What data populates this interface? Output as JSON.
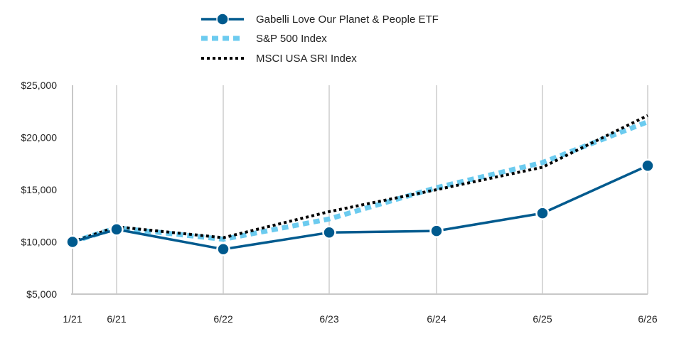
{
  "chart_data": {
    "type": "line",
    "x": [
      "1/21",
      "6/21",
      "6/22",
      "6/23",
      "6/24",
      "6/25",
      "6/26"
    ],
    "ylim": [
      5000,
      25000
    ],
    "y_ticks": [
      {
        "value": 5000,
        "label": "$5,000"
      },
      {
        "value": 10000,
        "label": "$10,000"
      },
      {
        "value": 15000,
        "label": "$15,000"
      },
      {
        "value": 20000,
        "label": "$20,000"
      },
      {
        "value": 25000,
        "label": "$25,000"
      }
    ],
    "grid": "vertical",
    "legend_position": "top-center",
    "series": [
      {
        "name": "Gabelli Love Our Planet & People ETF",
        "color": "#005a8e",
        "style": "solid-markers",
        "values": [
          10000,
          11200,
          9300,
          10900,
          11050,
          12750,
          17300
        ]
      },
      {
        "name": "S&P 500 Index",
        "color": "#6ccbef",
        "style": "dashed",
        "values": [
          10000,
          11350,
          10250,
          12200,
          15200,
          17600,
          21500
        ]
      },
      {
        "name": "MSCI USA SRI Index",
        "color": "#000000",
        "style": "dotted",
        "values": [
          10000,
          11450,
          10400,
          12900,
          15000,
          17150,
          22100
        ]
      }
    ]
  }
}
